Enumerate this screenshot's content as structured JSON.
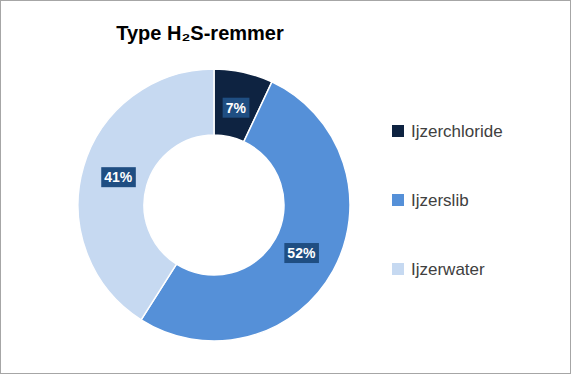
{
  "chart_data": {
    "type": "donut",
    "title": "Type H₂S-remmer",
    "categories": [
      "Ijzerchloride",
      "Ijzerslib",
      "Ijzerwater"
    ],
    "values": [
      7,
      52,
      41
    ],
    "value_labels": [
      "7%",
      "52%",
      "41%"
    ],
    "colors": [
      "#0e2341",
      "#5590d8",
      "#c6d9f1"
    ],
    "data_labels": true,
    "legend": "right"
  }
}
